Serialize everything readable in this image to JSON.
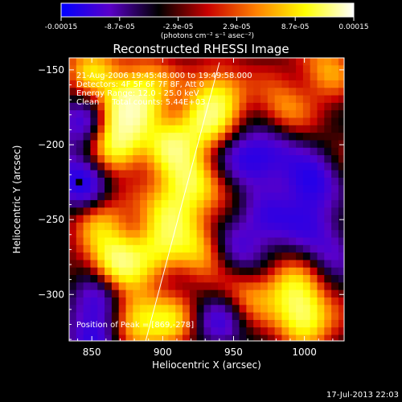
{
  "chart_data": {
    "type": "heatmap",
    "title": "Reconstructed RHESSI Image",
    "colorbar": {
      "tick_labels": [
        "-0.00015",
        "-8.7e-05",
        "-2.9e-05",
        "2.9e-05",
        "8.7e-05",
        "0.00015"
      ],
      "units_label": "(photons cm⁻² s⁻¹ asec⁻²)",
      "range": [
        -0.00015,
        0.00015
      ],
      "colormap": [
        "#0000ff",
        "#5a00c8",
        "#000000",
        "#c80000",
        "#ff8000",
        "#ffff00",
        "#ffffff"
      ]
    },
    "xlabel": "Heliocentric X (arcsec)",
    "ylabel": "Heliocentric Y (arcsec)",
    "xlim": [
      834,
      1028
    ],
    "ylim": [
      -331,
      -142
    ],
    "x_ticks": [
      850,
      900,
      950,
      1000
    ],
    "y_ticks": [
      -150,
      -200,
      -250,
      -300
    ],
    "info_lines": [
      "21-Aug-2006 19:45:48.000 to 19:49:58.000",
      "Detectors: 4F 5F 6F 7F 8F, Att 0",
      "Energy Range: 12.0 - 25.0 keV",
      "Clean     Total counts: 5.44E+03"
    ],
    "peak_label": "Position of Peak = [869,-278]",
    "peak_position": [
      869,
      -278
    ],
    "limb_line": {
      "x": [
        888,
        940
      ],
      "y": [
        -331,
        -145
      ]
    },
    "bright_blobs": [
      {
        "x": 875,
        "y": -175,
        "v": 1.0
      },
      {
        "x": 868,
        "y": -200,
        "v": 0.9
      },
      {
        "x": 905,
        "y": -200,
        "v": 0.85
      },
      {
        "x": 920,
        "y": -225,
        "v": 0.8
      },
      {
        "x": 930,
        "y": -185,
        "v": 0.75
      },
      {
        "x": 940,
        "y": -165,
        "v": 0.65
      },
      {
        "x": 905,
        "y": -245,
        "v": 0.75
      },
      {
        "x": 925,
        "y": -270,
        "v": 0.6
      },
      {
        "x": 868,
        "y": -278,
        "v": 1.0
      },
      {
        "x": 895,
        "y": -270,
        "v": 0.6
      },
      {
        "x": 880,
        "y": -315,
        "v": 0.75
      },
      {
        "x": 905,
        "y": -320,
        "v": 0.6
      },
      {
        "x": 1000,
        "y": -315,
        "v": 0.95
      },
      {
        "x": 990,
        "y": -295,
        "v": 0.55
      },
      {
        "x": 1015,
        "y": -150,
        "v": 0.5
      },
      {
        "x": 985,
        "y": -175,
        "v": 0.45
      },
      {
        "x": 960,
        "y": -300,
        "v": 0.45
      },
      {
        "x": 855,
        "y": -250,
        "v": 0.5
      },
      {
        "x": 850,
        "y": -150,
        "v": 0.6
      },
      {
        "x": 890,
        "y": -160,
        "v": 0.55
      }
    ],
    "dark_blobs": [
      {
        "x": 842,
        "y": -225,
        "v": -0.9
      },
      {
        "x": 842,
        "y": -185,
        "v": -0.6
      },
      {
        "x": 960,
        "y": -210,
        "v": -0.7
      },
      {
        "x": 1005,
        "y": -225,
        "v": -0.8
      },
      {
        "x": 975,
        "y": -250,
        "v": -0.6
      },
      {
        "x": 955,
        "y": -270,
        "v": -0.55
      },
      {
        "x": 1020,
        "y": -270,
        "v": -0.5
      },
      {
        "x": 855,
        "y": -305,
        "v": -0.7
      },
      {
        "x": 850,
        "y": -330,
        "v": -0.6
      },
      {
        "x": 940,
        "y": -320,
        "v": -0.6
      },
      {
        "x": 1000,
        "y": -250,
        "v": -0.45
      },
      {
        "x": 980,
        "y": -205,
        "v": -0.5
      }
    ]
  },
  "footer": {
    "timestamp": "17-Jul-2013 22:03"
  }
}
